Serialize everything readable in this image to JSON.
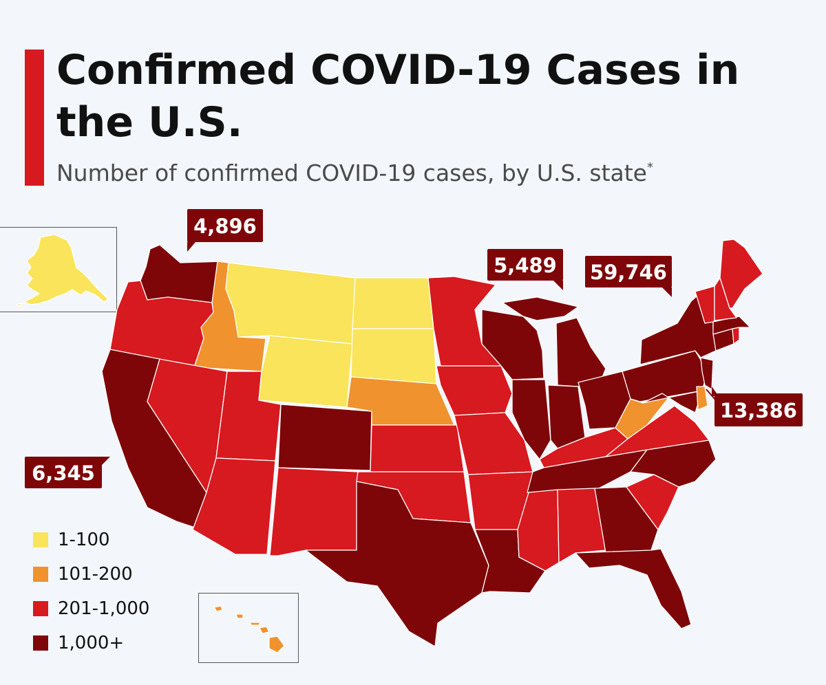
{
  "header": {
    "title": "Confirmed COVID-19 Cases in the U.S.",
    "subtitle": "Number of confirmed COVID-19 cases, by U.S. state",
    "subtitle_mark": "*"
  },
  "colors": {
    "accent": "#d71920",
    "bin_1_100": "#f9e45b",
    "bin_101_200": "#f0922d",
    "bin_201_1000": "#d71920",
    "bin_1000_plus": "#7e0609"
  },
  "legend": [
    {
      "label": "1-100",
      "color": "#f9e45b"
    },
    {
      "label": "101-200",
      "color": "#f0922d"
    },
    {
      "label": "201-1,000",
      "color": "#d71920"
    },
    {
      "label": "1,000+",
      "color": "#7e0609"
    }
  ],
  "callouts": {
    "washington": "4,896",
    "michigan": "5,489",
    "new_york": "59,746",
    "new_jersey": "13,386",
    "california": "6,345"
  },
  "states": {
    "WA": "1,000+",
    "OR": "201-1,000",
    "CA": "1,000+",
    "ID": "101-200",
    "NV": "201-1,000",
    "UT": "201-1,000",
    "AZ": "201-1,000",
    "MT": "1-100",
    "WY": "1-100",
    "CO": "1,000+",
    "NM": "201-1,000",
    "ND": "1-100",
    "SD": "1-100",
    "NE": "101-200",
    "KS": "201-1,000",
    "OK": "201-1,000",
    "TX": "1,000+",
    "MN": "201-1,000",
    "IA": "201-1,000",
    "MO": "201-1,000",
    "AR": "201-1,000",
    "LA": "1,000+",
    "WI": "1,000+",
    "IL": "1,000+",
    "MI": "1,000+",
    "IN": "1,000+",
    "OH": "1,000+",
    "KY": "201-1,000",
    "TN": "1,000+",
    "MS": "201-1,000",
    "AL": "201-1,000",
    "GA": "1,000+",
    "FL": "1,000+",
    "SC": "201-1,000",
    "NC": "1,000+",
    "VA": "201-1,000",
    "WV": "101-200",
    "PA": "1,000+",
    "NY": "1,000+",
    "NJ": "1,000+",
    "DE": "101-200",
    "MD": "1,000+",
    "CT": "1,000+",
    "RI": "201-1,000",
    "MA": "1,000+",
    "VT": "201-1,000",
    "NH": "201-1,000",
    "ME": "201-1,000",
    "AK": "1-100",
    "HI": "101-200"
  }
}
